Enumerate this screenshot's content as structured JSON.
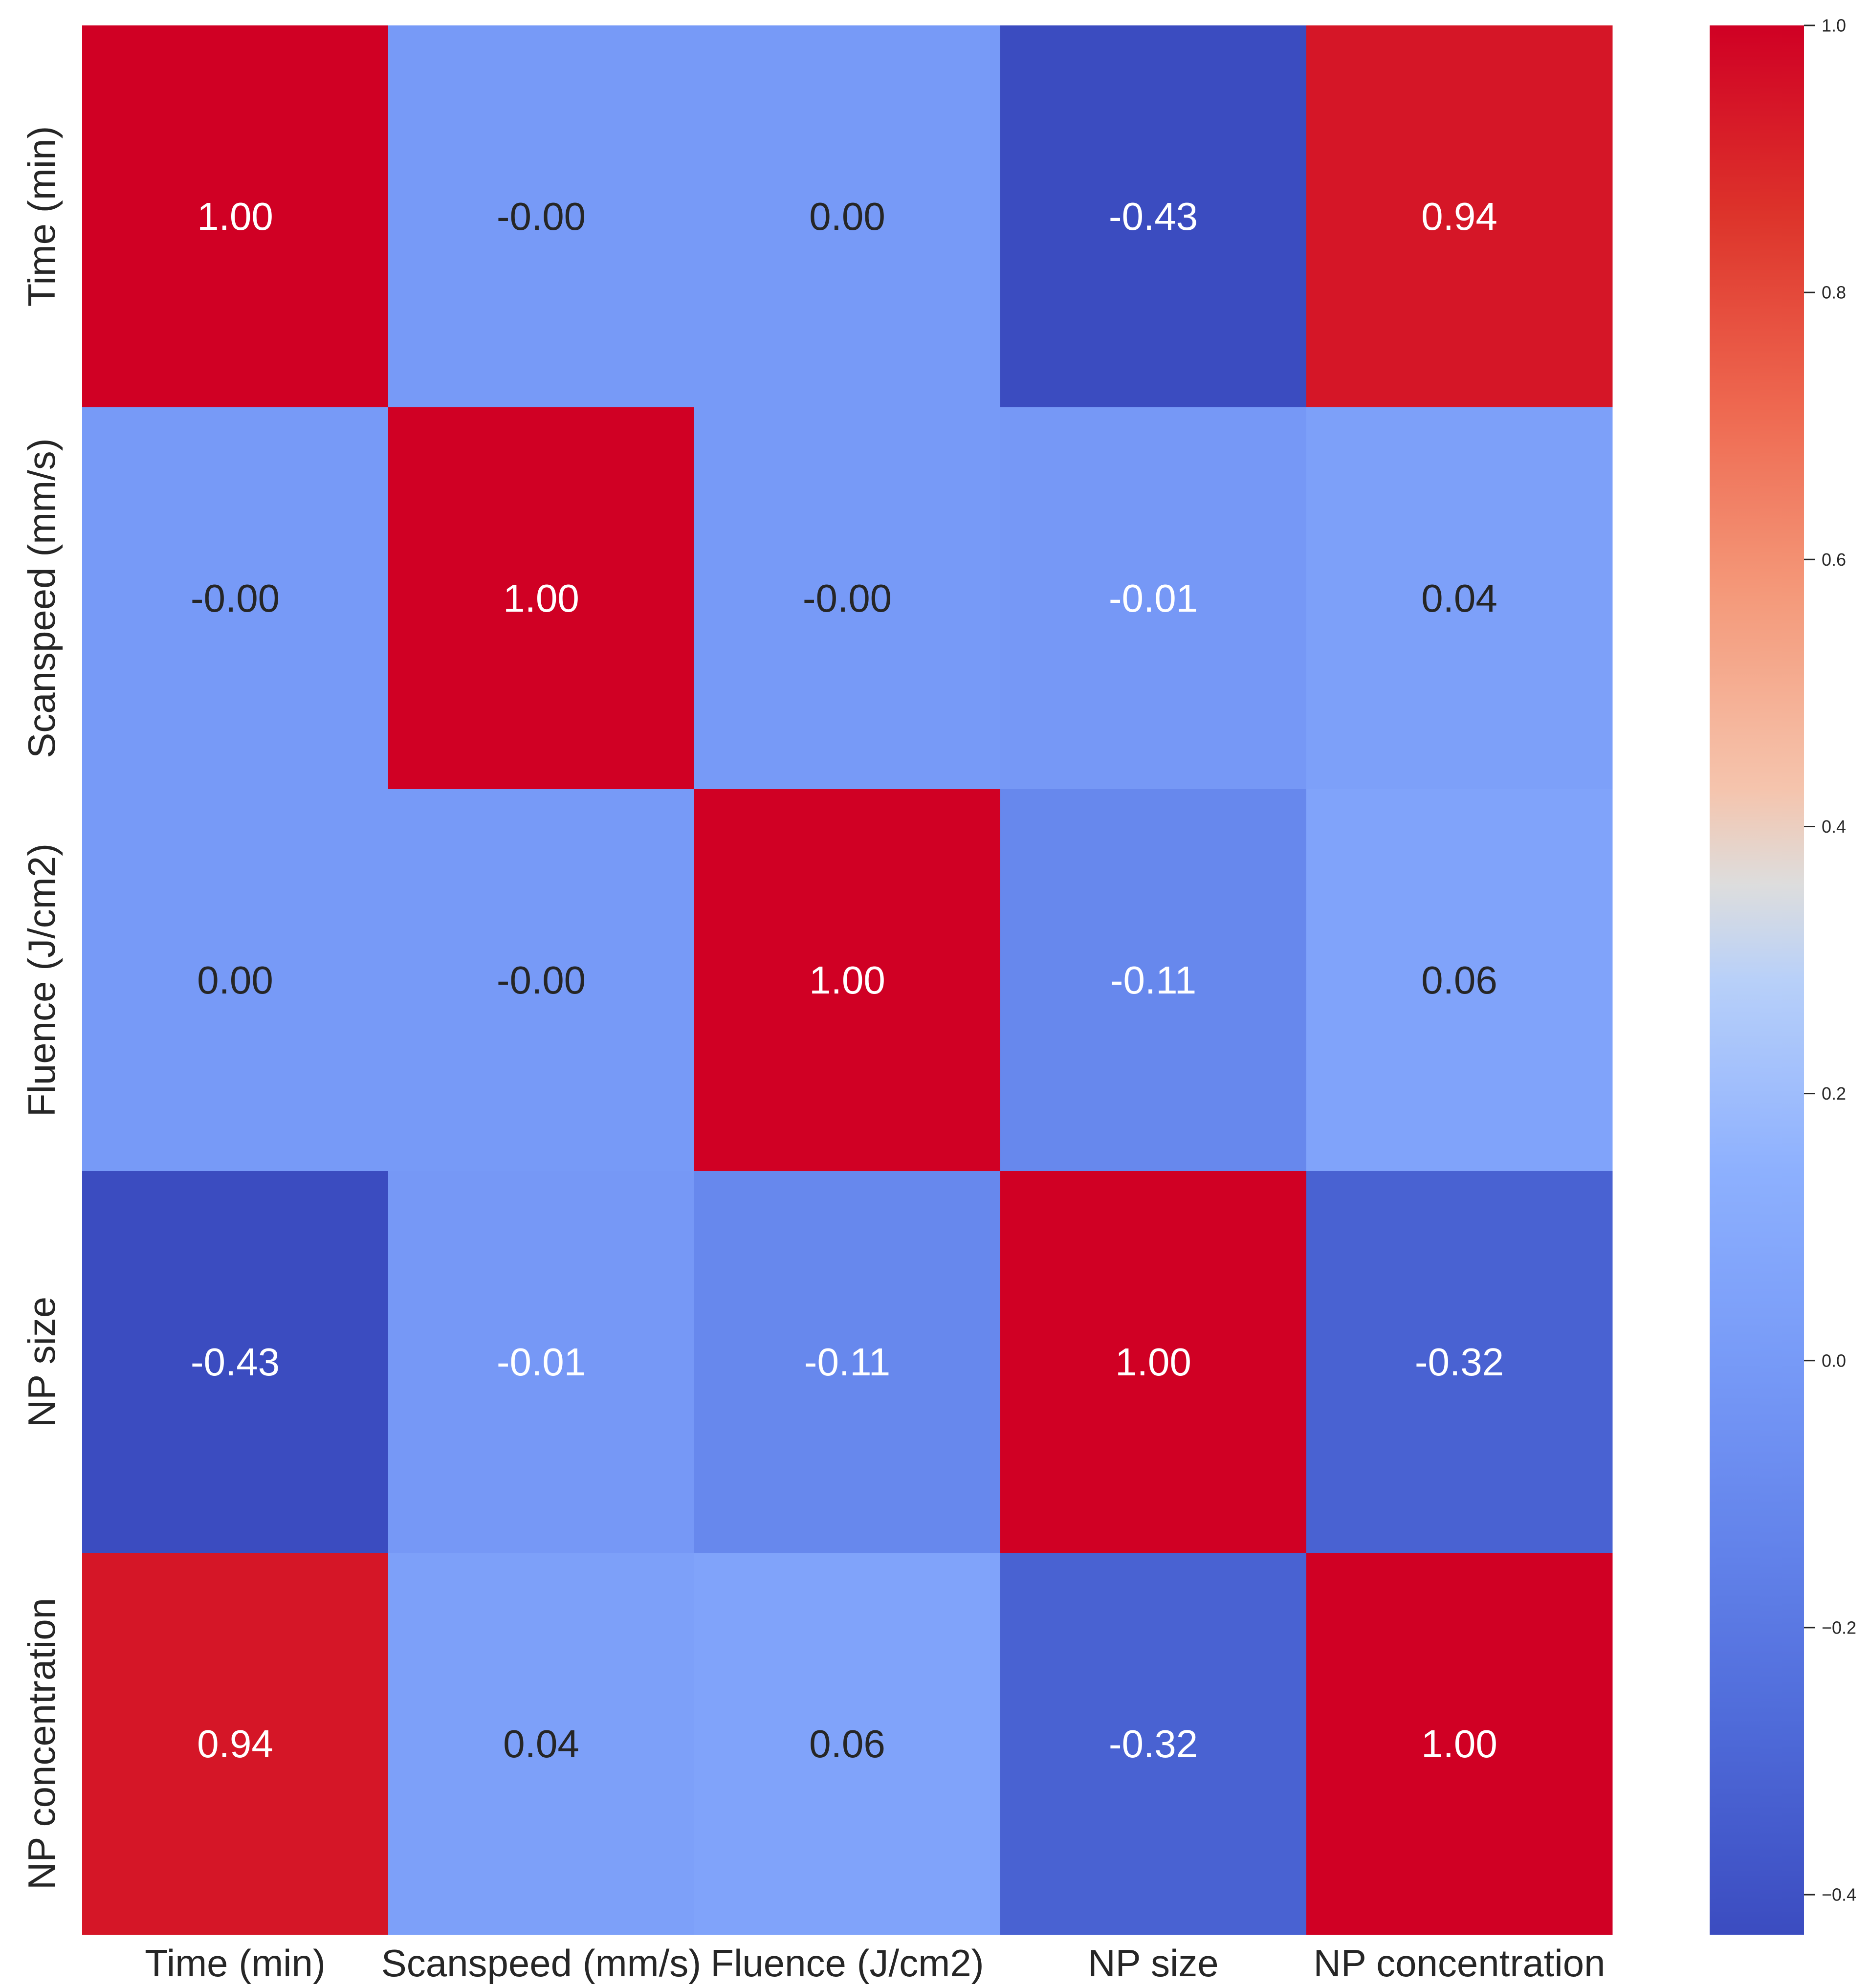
{
  "chart_data": {
    "type": "heatmap",
    "title": "",
    "xlabel": "",
    "ylabel": "",
    "x_labels": [
      "Time (min)",
      "Scanspeed (mm/s)",
      "Fluence (J/cm2)",
      "NP size",
      "NP concentration"
    ],
    "y_labels": [
      "Time (min)",
      "Scanspeed (mm/s)",
      "Fluence (J/cm2)",
      "NP size",
      "NP concentration"
    ],
    "values": [
      [
        1.0,
        -0.0,
        0.0,
        -0.43,
        0.94
      ],
      [
        -0.0,
        1.0,
        -0.0,
        -0.01,
        0.04
      ],
      [
        0.0,
        -0.0,
        1.0,
        -0.11,
        0.06
      ],
      [
        -0.43,
        -0.01,
        -0.11,
        1.0,
        -0.32
      ],
      [
        0.94,
        0.04,
        0.06,
        -0.32,
        1.0
      ]
    ],
    "annotations": [
      [
        "1.00",
        "-0.00",
        "0.00",
        "-0.43",
        "0.94"
      ],
      [
        "-0.00",
        "1.00",
        "-0.00",
        "-0.01",
        "0.04"
      ],
      [
        "0.00",
        "-0.00",
        "1.00",
        "-0.11",
        "0.06"
      ],
      [
        "-0.43",
        "-0.01",
        "-0.11",
        "1.00",
        "-0.32"
      ],
      [
        "0.94",
        "0.04",
        "0.06",
        "-0.32",
        "1.00"
      ]
    ],
    "colormap": "coolwarm",
    "vmin": -0.43,
    "vmax": 1.0,
    "colorbar": {
      "ticks": [
        1.0,
        0.8,
        0.6,
        0.4,
        0.2,
        0.0,
        -0.2,
        -0.4
      ],
      "tick_labels": [
        "1.0",
        "0.8",
        "0.6",
        "0.4",
        "0.2",
        "0.0",
        "−0.2",
        "−0.4"
      ],
      "placement": "right"
    },
    "grid": false
  }
}
